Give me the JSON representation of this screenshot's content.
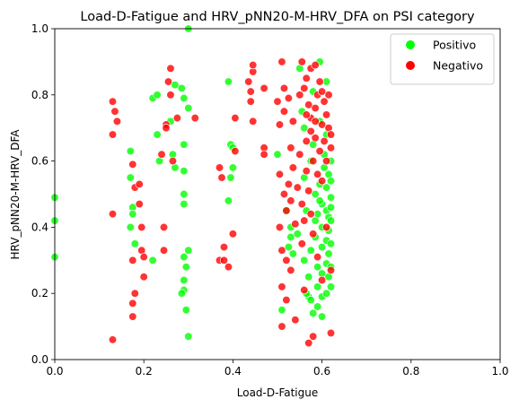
{
  "chart_data": {
    "type": "scatter",
    "title": "Load-D-Fatigue and HRV_pNN20-M-HRV_DFA on PSI category",
    "xlabel": "Load-D-Fatigue",
    "ylabel": "HRV_pNN20-M-HRV_DFA",
    "xlim": [
      0,
      1
    ],
    "ylim": [
      0,
      1
    ],
    "xticks": [
      "0.0",
      "0.2",
      "0.4",
      "0.6",
      "0.8",
      "1.0"
    ],
    "yticks": [
      "0.0",
      "0.2",
      "0.4",
      "0.6",
      "0.8",
      "1.0"
    ],
    "grid": false,
    "legend_position": "top-right",
    "series": [
      {
        "name": "Positivo",
        "color": "#00ff00",
        "points": [
          [
            0.0,
            0.49
          ],
          [
            0.0,
            0.42
          ],
          [
            0.0,
            0.31
          ],
          [
            0.17,
            0.63
          ],
          [
            0.17,
            0.55
          ],
          [
            0.175,
            0.46
          ],
          [
            0.17,
            0.4
          ],
          [
            0.18,
            0.35
          ],
          [
            0.175,
            0.44
          ],
          [
            0.22,
            0.79
          ],
          [
            0.23,
            0.8
          ],
          [
            0.23,
            0.68
          ],
          [
            0.22,
            0.3
          ],
          [
            0.235,
            0.6
          ],
          [
            0.26,
            0.72
          ],
          [
            0.265,
            0.62
          ],
          [
            0.27,
            0.58
          ],
          [
            0.27,
            0.83
          ],
          [
            0.285,
            0.82
          ],
          [
            0.29,
            0.79
          ],
          [
            0.29,
            0.65
          ],
          [
            0.29,
            0.57
          ],
          [
            0.29,
            0.5
          ],
          [
            0.29,
            0.47
          ],
          [
            0.29,
            0.31
          ],
          [
            0.29,
            0.24
          ],
          [
            0.29,
            0.21
          ],
          [
            0.295,
            0.15
          ],
          [
            0.3,
            0.07
          ],
          [
            0.3,
            1.0
          ],
          [
            0.3,
            0.76
          ],
          [
            0.3,
            0.33
          ],
          [
            0.285,
            0.2
          ],
          [
            0.295,
            0.28
          ],
          [
            0.39,
            0.84
          ],
          [
            0.395,
            0.65
          ],
          [
            0.4,
            0.58
          ],
          [
            0.395,
            0.55
          ],
          [
            0.39,
            0.48
          ],
          [
            0.4,
            0.64
          ],
          [
            0.5,
            0.62
          ],
          [
            0.51,
            0.15
          ],
          [
            0.52,
            0.45
          ],
          [
            0.525,
            0.34
          ],
          [
            0.53,
            0.37
          ],
          [
            0.53,
            0.4
          ],
          [
            0.535,
            0.32
          ],
          [
            0.545,
            0.38
          ],
          [
            0.55,
            0.88
          ],
          [
            0.555,
            0.75
          ],
          [
            0.56,
            0.7
          ],
          [
            0.56,
            0.55
          ],
          [
            0.565,
            0.45
          ],
          [
            0.56,
            0.3
          ],
          [
            0.57,
            0.19
          ],
          [
            0.57,
            0.25
          ],
          [
            0.575,
            0.33
          ],
          [
            0.575,
            0.6
          ],
          [
            0.58,
            0.81
          ],
          [
            0.58,
            0.65
          ],
          [
            0.585,
            0.5
          ],
          [
            0.585,
            0.42
          ],
          [
            0.585,
            0.37
          ],
          [
            0.59,
            0.28
          ],
          [
            0.59,
            0.22
          ],
          [
            0.59,
            0.16
          ],
          [
            0.595,
            0.9
          ],
          [
            0.595,
            0.72
          ],
          [
            0.595,
            0.53
          ],
          [
            0.6,
            0.47
          ],
          [
            0.6,
            0.4
          ],
          [
            0.6,
            0.34
          ],
          [
            0.6,
            0.26
          ],
          [
            0.6,
            0.19
          ],
          [
            0.605,
            0.58
          ],
          [
            0.605,
            0.62
          ],
          [
            0.61,
            0.84
          ],
          [
            0.61,
            0.68
          ],
          [
            0.61,
            0.52
          ],
          [
            0.61,
            0.45
          ],
          [
            0.61,
            0.36
          ],
          [
            0.61,
            0.29
          ],
          [
            0.61,
            0.2
          ],
          [
            0.615,
            0.56
          ],
          [
            0.615,
            0.43
          ],
          [
            0.615,
            0.39
          ],
          [
            0.615,
            0.32
          ],
          [
            0.615,
            0.25
          ],
          [
            0.62,
            0.6
          ],
          [
            0.62,
            0.49
          ],
          [
            0.62,
            0.42
          ],
          [
            0.62,
            0.35
          ],
          [
            0.62,
            0.28
          ],
          [
            0.62,
            0.22
          ],
          [
            0.62,
            0.54
          ],
          [
            0.62,
            0.46
          ],
          [
            0.565,
            0.2
          ],
          [
            0.575,
            0.18
          ],
          [
            0.58,
            0.14
          ],
          [
            0.6,
            0.13
          ],
          [
            0.59,
            0.44
          ],
          [
            0.595,
            0.48
          ]
        ]
      },
      {
        "name": "Negativo",
        "color": "#ff0000",
        "points": [
          [
            0.13,
            0.78
          ],
          [
            0.135,
            0.75
          ],
          [
            0.14,
            0.72
          ],
          [
            0.13,
            0.68
          ],
          [
            0.13,
            0.44
          ],
          [
            0.13,
            0.06
          ],
          [
            0.175,
            0.59
          ],
          [
            0.18,
            0.52
          ],
          [
            0.175,
            0.3
          ],
          [
            0.18,
            0.2
          ],
          [
            0.175,
            0.17
          ],
          [
            0.175,
            0.13
          ],
          [
            0.19,
            0.53
          ],
          [
            0.19,
            0.47
          ],
          [
            0.195,
            0.4
          ],
          [
            0.195,
            0.33
          ],
          [
            0.2,
            0.31
          ],
          [
            0.2,
            0.25
          ],
          [
            0.24,
            0.62
          ],
          [
            0.245,
            0.4
          ],
          [
            0.245,
            0.33
          ],
          [
            0.25,
            0.71
          ],
          [
            0.25,
            0.7
          ],
          [
            0.255,
            0.84
          ],
          [
            0.26,
            0.88
          ],
          [
            0.26,
            0.8
          ],
          [
            0.265,
            0.6
          ],
          [
            0.275,
            0.73
          ],
          [
            0.315,
            0.73
          ],
          [
            0.37,
            0.58
          ],
          [
            0.375,
            0.55
          ],
          [
            0.37,
            0.3
          ],
          [
            0.38,
            0.34
          ],
          [
            0.38,
            0.3
          ],
          [
            0.39,
            0.28
          ],
          [
            0.4,
            0.38
          ],
          [
            0.405,
            0.73
          ],
          [
            0.405,
            0.63
          ],
          [
            0.435,
            0.84
          ],
          [
            0.44,
            0.81
          ],
          [
            0.44,
            0.78
          ],
          [
            0.445,
            0.72
          ],
          [
            0.445,
            0.87
          ],
          [
            0.445,
            0.89
          ],
          [
            0.47,
            0.82
          ],
          [
            0.47,
            0.64
          ],
          [
            0.47,
            0.62
          ],
          [
            0.5,
            0.78
          ],
          [
            0.505,
            0.71
          ],
          [
            0.505,
            0.56
          ],
          [
            0.505,
            0.4
          ],
          [
            0.51,
            0.33
          ],
          [
            0.51,
            0.22
          ],
          [
            0.51,
            0.1
          ],
          [
            0.51,
            0.9
          ],
          [
            0.515,
            0.82
          ],
          [
            0.515,
            0.75
          ],
          [
            0.515,
            0.5
          ],
          [
            0.52,
            0.45
          ],
          [
            0.52,
            0.3
          ],
          [
            0.52,
            0.18
          ],
          [
            0.525,
            0.79
          ],
          [
            0.525,
            0.53
          ],
          [
            0.53,
            0.64
          ],
          [
            0.53,
            0.27
          ],
          [
            0.53,
            0.48
          ],
          [
            0.535,
            0.72
          ],
          [
            0.535,
            0.58
          ],
          [
            0.54,
            0.41
          ],
          [
            0.54,
            0.12
          ],
          [
            0.545,
            0.52
          ],
          [
            0.55,
            0.8
          ],
          [
            0.55,
            0.62
          ],
          [
            0.555,
            0.47
          ],
          [
            0.555,
            0.35
          ],
          [
            0.56,
            0.21
          ],
          [
            0.56,
            0.42
          ],
          [
            0.565,
            0.85
          ],
          [
            0.565,
            0.66
          ],
          [
            0.565,
            0.57
          ],
          [
            0.57,
            0.77
          ],
          [
            0.57,
            0.51
          ],
          [
            0.57,
            0.05
          ],
          [
            0.575,
            0.88
          ],
          [
            0.575,
            0.73
          ],
          [
            0.575,
            0.44
          ],
          [
            0.58,
            0.6
          ],
          [
            0.58,
            0.38
          ],
          [
            0.58,
            0.07
          ],
          [
            0.585,
            0.89
          ],
          [
            0.585,
            0.76
          ],
          [
            0.585,
            0.67
          ],
          [
            0.59,
            0.8
          ],
          [
            0.59,
            0.56
          ],
          [
            0.59,
            0.31
          ],
          [
            0.595,
            0.84
          ],
          [
            0.595,
            0.63
          ],
          [
            0.6,
            0.71
          ],
          [
            0.6,
            0.54
          ],
          [
            0.6,
            0.24
          ],
          [
            0.605,
            0.78
          ],
          [
            0.605,
            0.66
          ],
          [
            0.61,
            0.74
          ],
          [
            0.61,
            0.6
          ],
          [
            0.61,
            0.4
          ],
          [
            0.615,
            0.7
          ],
          [
            0.615,
            0.8
          ],
          [
            0.62,
            0.68
          ],
          [
            0.62,
            0.08
          ],
          [
            0.62,
            0.27
          ],
          [
            0.62,
            0.64
          ],
          [
            0.555,
            0.9
          ],
          [
            0.56,
            0.82
          ],
          [
            0.565,
            0.74
          ],
          [
            0.575,
            0.69
          ],
          [
            0.585,
            0.72
          ],
          [
            0.6,
            0.81
          ]
        ]
      }
    ]
  }
}
